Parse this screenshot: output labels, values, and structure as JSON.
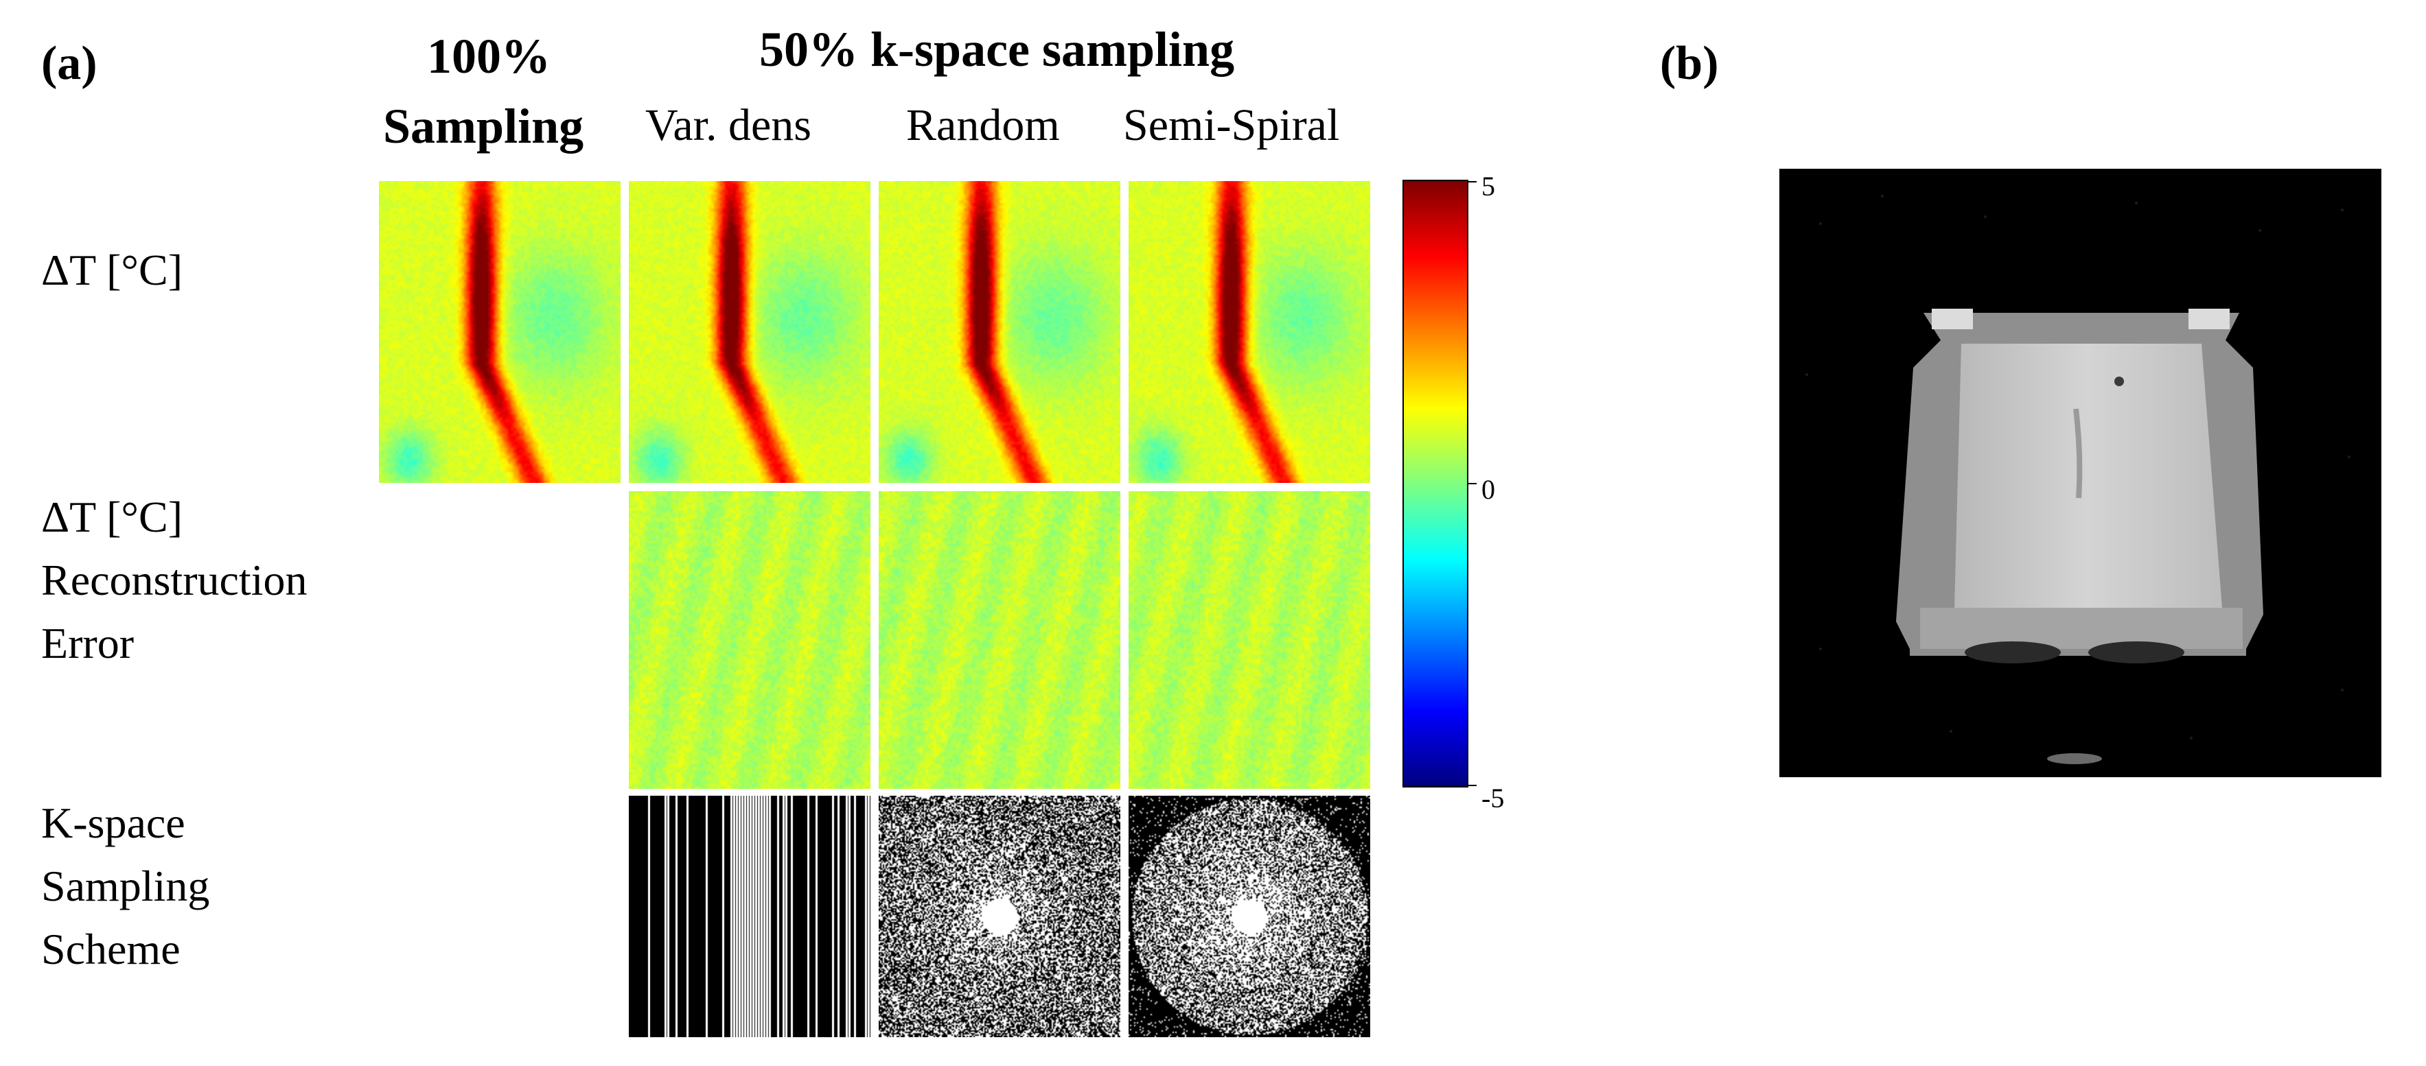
{
  "figure": {
    "panel_a_label": "(a)",
    "panel_b_label": "(b)",
    "group_title": "50% k-space sampling",
    "col_full_line1": "100%",
    "col_full_line2": "Sampling",
    "columns": [
      "Var. dens",
      "Random",
      "Semi-Spiral"
    ],
    "rows": {
      "temp": [
        "ΔT [°C]"
      ],
      "error": [
        "ΔT [°C]",
        "Reconstruction",
        "Error"
      ],
      "kspace": [
        "K-space",
        "Sampling",
        "Scheme"
      ]
    },
    "colorbar": {
      "max_label": "5",
      "mid_label": "0",
      "min_label": "-5",
      "range": [
        -5,
        5
      ],
      "colormap": "jet"
    }
  },
  "colors": {
    "background": "#ffffff",
    "error_map_base": "#7cc070",
    "heat_peak": "#8b0000"
  }
}
